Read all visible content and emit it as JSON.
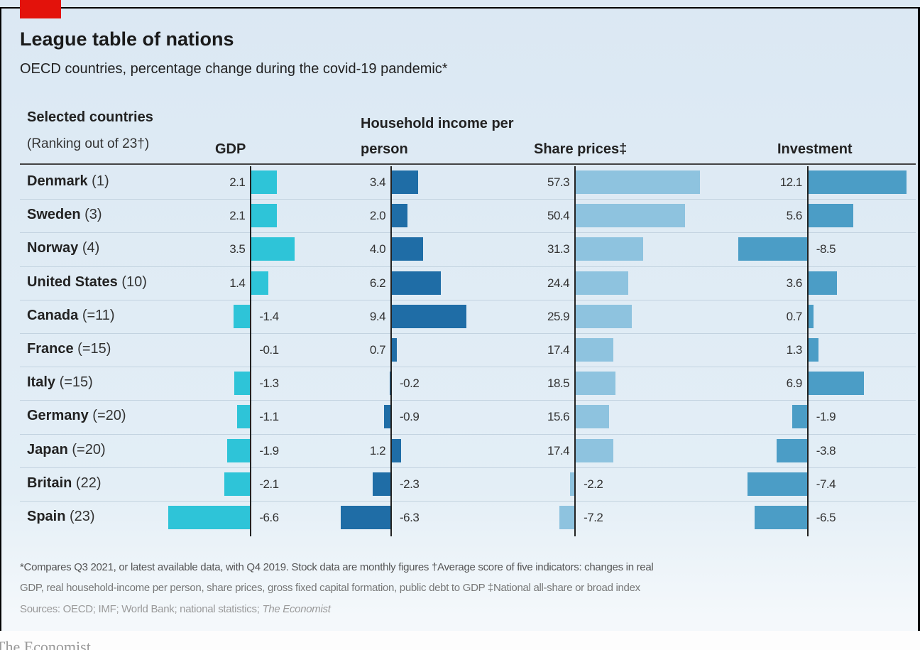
{
  "chart_data": {
    "type": "bartable",
    "title": "League table of nations",
    "subtitle": "OECD countries, percentage change during the covid-19 pandemic*",
    "category_header": [
      "Selected countries",
      "(Ranking out of 23†)"
    ],
    "categories": [
      "Denmark",
      "Sweden",
      "Norway",
      "United States",
      "Canada",
      "France",
      "Italy",
      "Germany",
      "Japan",
      "Britain",
      "Spain"
    ],
    "rankings": [
      "(1)",
      "(3)",
      "(4)",
      "(10)",
      "(=11)",
      "(=15)",
      "(=15)",
      "(=20)",
      "(=20)",
      "(22)",
      "(23)"
    ],
    "series": [
      {
        "name": "GDP",
        "color": "#2ec4d8",
        "values": [
          2.1,
          2.1,
          3.5,
          1.4,
          -1.4,
          -0.1,
          -1.3,
          -1.1,
          -1.9,
          -2.1,
          -6.6
        ]
      },
      {
        "name": "Household income per person",
        "color": "#1f6da6",
        "values": [
          3.4,
          2.0,
          4.0,
          6.2,
          9.4,
          0.7,
          -0.2,
          -0.9,
          1.2,
          -2.3,
          -6.3
        ],
        "value_labels": [
          "3.4",
          "2.0",
          "4.0",
          "6.2",
          "9.4",
          "0.7",
          "-0.2",
          "-0.9",
          "1.2",
          "-2.3",
          "-6.3"
        ]
      },
      {
        "name": "Share prices‡",
        "color": "#8ec3df",
        "values": [
          57.3,
          50.4,
          31.3,
          24.4,
          25.9,
          17.4,
          18.5,
          15.6,
          17.4,
          -2.2,
          -7.2
        ]
      },
      {
        "name": "Investment",
        "color": "#4b9dc6",
        "values": [
          12.1,
          5.6,
          -8.5,
          3.6,
          0.7,
          1.3,
          6.9,
          -1.9,
          -3.8,
          -7.4,
          -6.5
        ]
      }
    ],
    "notes": [
      "*Compares Q3 2021, or latest available data, with Q4 2019. Stock data are monthly figures   †Average score of five indicators: changes in real",
      "GDP, real household-income per person, share prices, gross fixed capital formation, public debt to GDP   ‡National all-share or broad index"
    ],
    "sources": "Sources: OECD; IMF; World Bank; national statistics;",
    "sources_italic": "The Economist",
    "brand": "The Economist"
  }
}
